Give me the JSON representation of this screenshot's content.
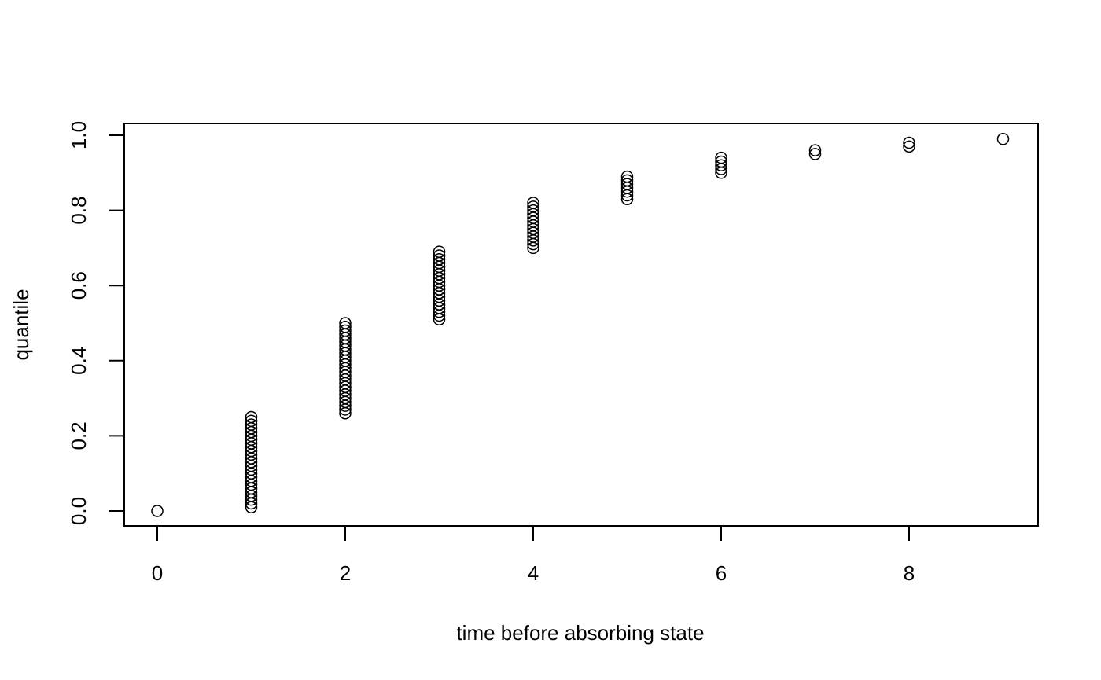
{
  "chart_data": {
    "type": "scatter",
    "title": "",
    "xlabel": "time before absorbing state",
    "ylabel": "quantile",
    "xlim": [
      0,
      9
    ],
    "ylim": [
      0,
      1
    ],
    "x_ticks": [
      0,
      2,
      4,
      6,
      8
    ],
    "y_ticks": [
      0.0,
      0.2,
      0.4,
      0.6,
      0.8,
      1.0
    ],
    "x_tick_labels": [
      "0",
      "2",
      "4",
      "6",
      "8"
    ],
    "y_tick_labels": [
      "0.0",
      "0.2",
      "0.4",
      "0.6",
      "0.8",
      "1.0"
    ],
    "grid": false,
    "series": [
      {
        "points": [
          {
            "x": 0,
            "y": [
              0.0
            ]
          },
          {
            "x": 1,
            "y": [
              0.01,
              0.02,
              0.03,
              0.04,
              0.05,
              0.06,
              0.07,
              0.08,
              0.09,
              0.1,
              0.11,
              0.12,
              0.13,
              0.14,
              0.15,
              0.16,
              0.17,
              0.18,
              0.19,
              0.2,
              0.21,
              0.22,
              0.23,
              0.24,
              0.25
            ]
          },
          {
            "x": 2,
            "y": [
              0.26,
              0.27,
              0.28,
              0.29,
              0.3,
              0.31,
              0.32,
              0.33,
              0.34,
              0.35,
              0.36,
              0.37,
              0.38,
              0.39,
              0.4,
              0.41,
              0.42,
              0.43,
              0.44,
              0.45,
              0.46,
              0.47,
              0.48,
              0.49,
              0.5
            ]
          },
          {
            "x": 3,
            "y": [
              0.51,
              0.52,
              0.53,
              0.54,
              0.55,
              0.56,
              0.57,
              0.58,
              0.59,
              0.6,
              0.61,
              0.62,
              0.63,
              0.64,
              0.65,
              0.66,
              0.67,
              0.68,
              0.69
            ]
          },
          {
            "x": 4,
            "y": [
              0.7,
              0.71,
              0.72,
              0.73,
              0.74,
              0.75,
              0.76,
              0.77,
              0.78,
              0.79,
              0.8,
              0.81,
              0.82
            ]
          },
          {
            "x": 5,
            "y": [
              0.83,
              0.84,
              0.85,
              0.86,
              0.87,
              0.88,
              0.89
            ]
          },
          {
            "x": 6,
            "y": [
              0.9,
              0.91,
              0.92,
              0.93,
              0.94
            ]
          },
          {
            "x": 7,
            "y": [
              0.95,
              0.96
            ]
          },
          {
            "x": 8,
            "y": [
              0.97,
              0.98
            ]
          },
          {
            "x": 9,
            "y": [
              0.99
            ]
          }
        ]
      }
    ]
  }
}
